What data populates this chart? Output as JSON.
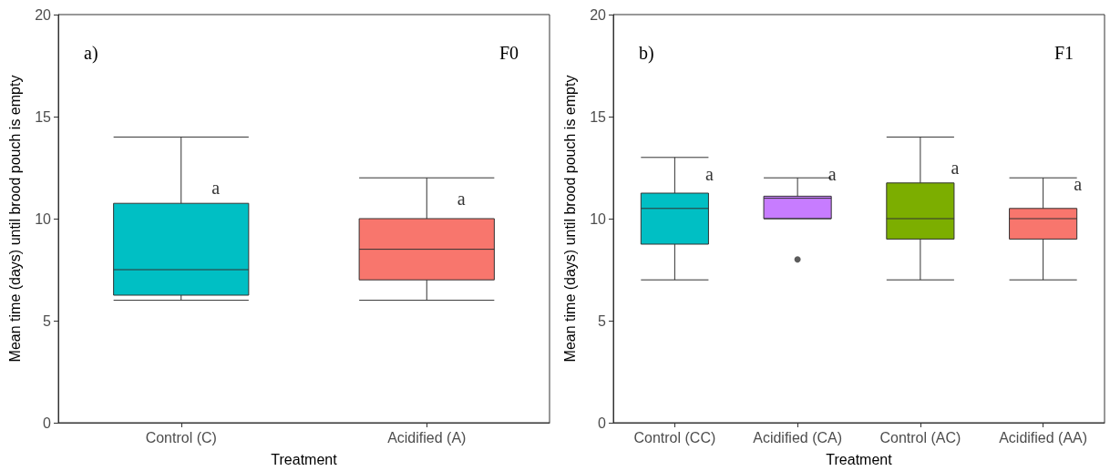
{
  "chart_data": [
    {
      "type": "box",
      "xlabel": "Treatment",
      "ylabel": "Mean time (days) until brood pouch is empty",
      "categories": [
        "Control (C)",
        "Acidified (A)"
      ],
      "colors": [
        "#00bfc4",
        "#f8766d"
      ],
      "boxes": [
        {
          "low": 6,
          "q1": 6.25,
          "median": 7.5,
          "q3": 10.75,
          "high": 14
        },
        {
          "low": 6,
          "q1": 7,
          "median": 8.5,
          "q3": 10,
          "high": 12
        }
      ],
      "ylim": [
        0,
        20
      ],
      "yticks": [
        0,
        5,
        10,
        15,
        20
      ],
      "grid": false,
      "annotations": [
        "a)",
        "F0",
        {
          "text": "a",
          "x": "Control (C)",
          "y": 11.5
        },
        {
          "text": "a",
          "x": "Acidified (A)",
          "y": 11
        }
      ]
    },
    {
      "type": "box",
      "xlabel": "Treatment",
      "ylabel": "Mean time (days) until brood pouch is empty",
      "categories": [
        "Control (CC)",
        "Acidified (CA)",
        "Control (AC)",
        "Acidified (AA)"
      ],
      "colors": [
        "#00bfc4",
        "#c77cff",
        "#7cae00",
        "#f8766d"
      ],
      "boxes": [
        {
          "low": 7,
          "q1": 8.75,
          "median": 10.5,
          "q3": 11.25,
          "high": 13
        },
        {
          "low": 10,
          "q1": 10,
          "median": 11,
          "q3": 11.1,
          "high": 12,
          "outliers": [
            8
          ]
        },
        {
          "low": 7,
          "q1": 9,
          "median": 10,
          "q3": 11.75,
          "high": 14
        },
        {
          "low": 7,
          "q1": 9,
          "median": 10,
          "q3": 10.5,
          "high": 12
        }
      ],
      "ylim": [
        0,
        20
      ],
      "yticks": [
        0,
        5,
        10,
        15,
        20
      ],
      "grid": false,
      "annotations": [
        "b)",
        "F1",
        {
          "text": "a",
          "x": "Control (CC)",
          "y": 12.2
        },
        {
          "text": "a",
          "x": "Acidified (CA)",
          "y": 12.2
        },
        {
          "text": "a",
          "x": "Control (AC)",
          "y": 12.5
        },
        {
          "text": "a",
          "x": "Acidified (AA)",
          "y": 11.7
        }
      ]
    }
  ]
}
